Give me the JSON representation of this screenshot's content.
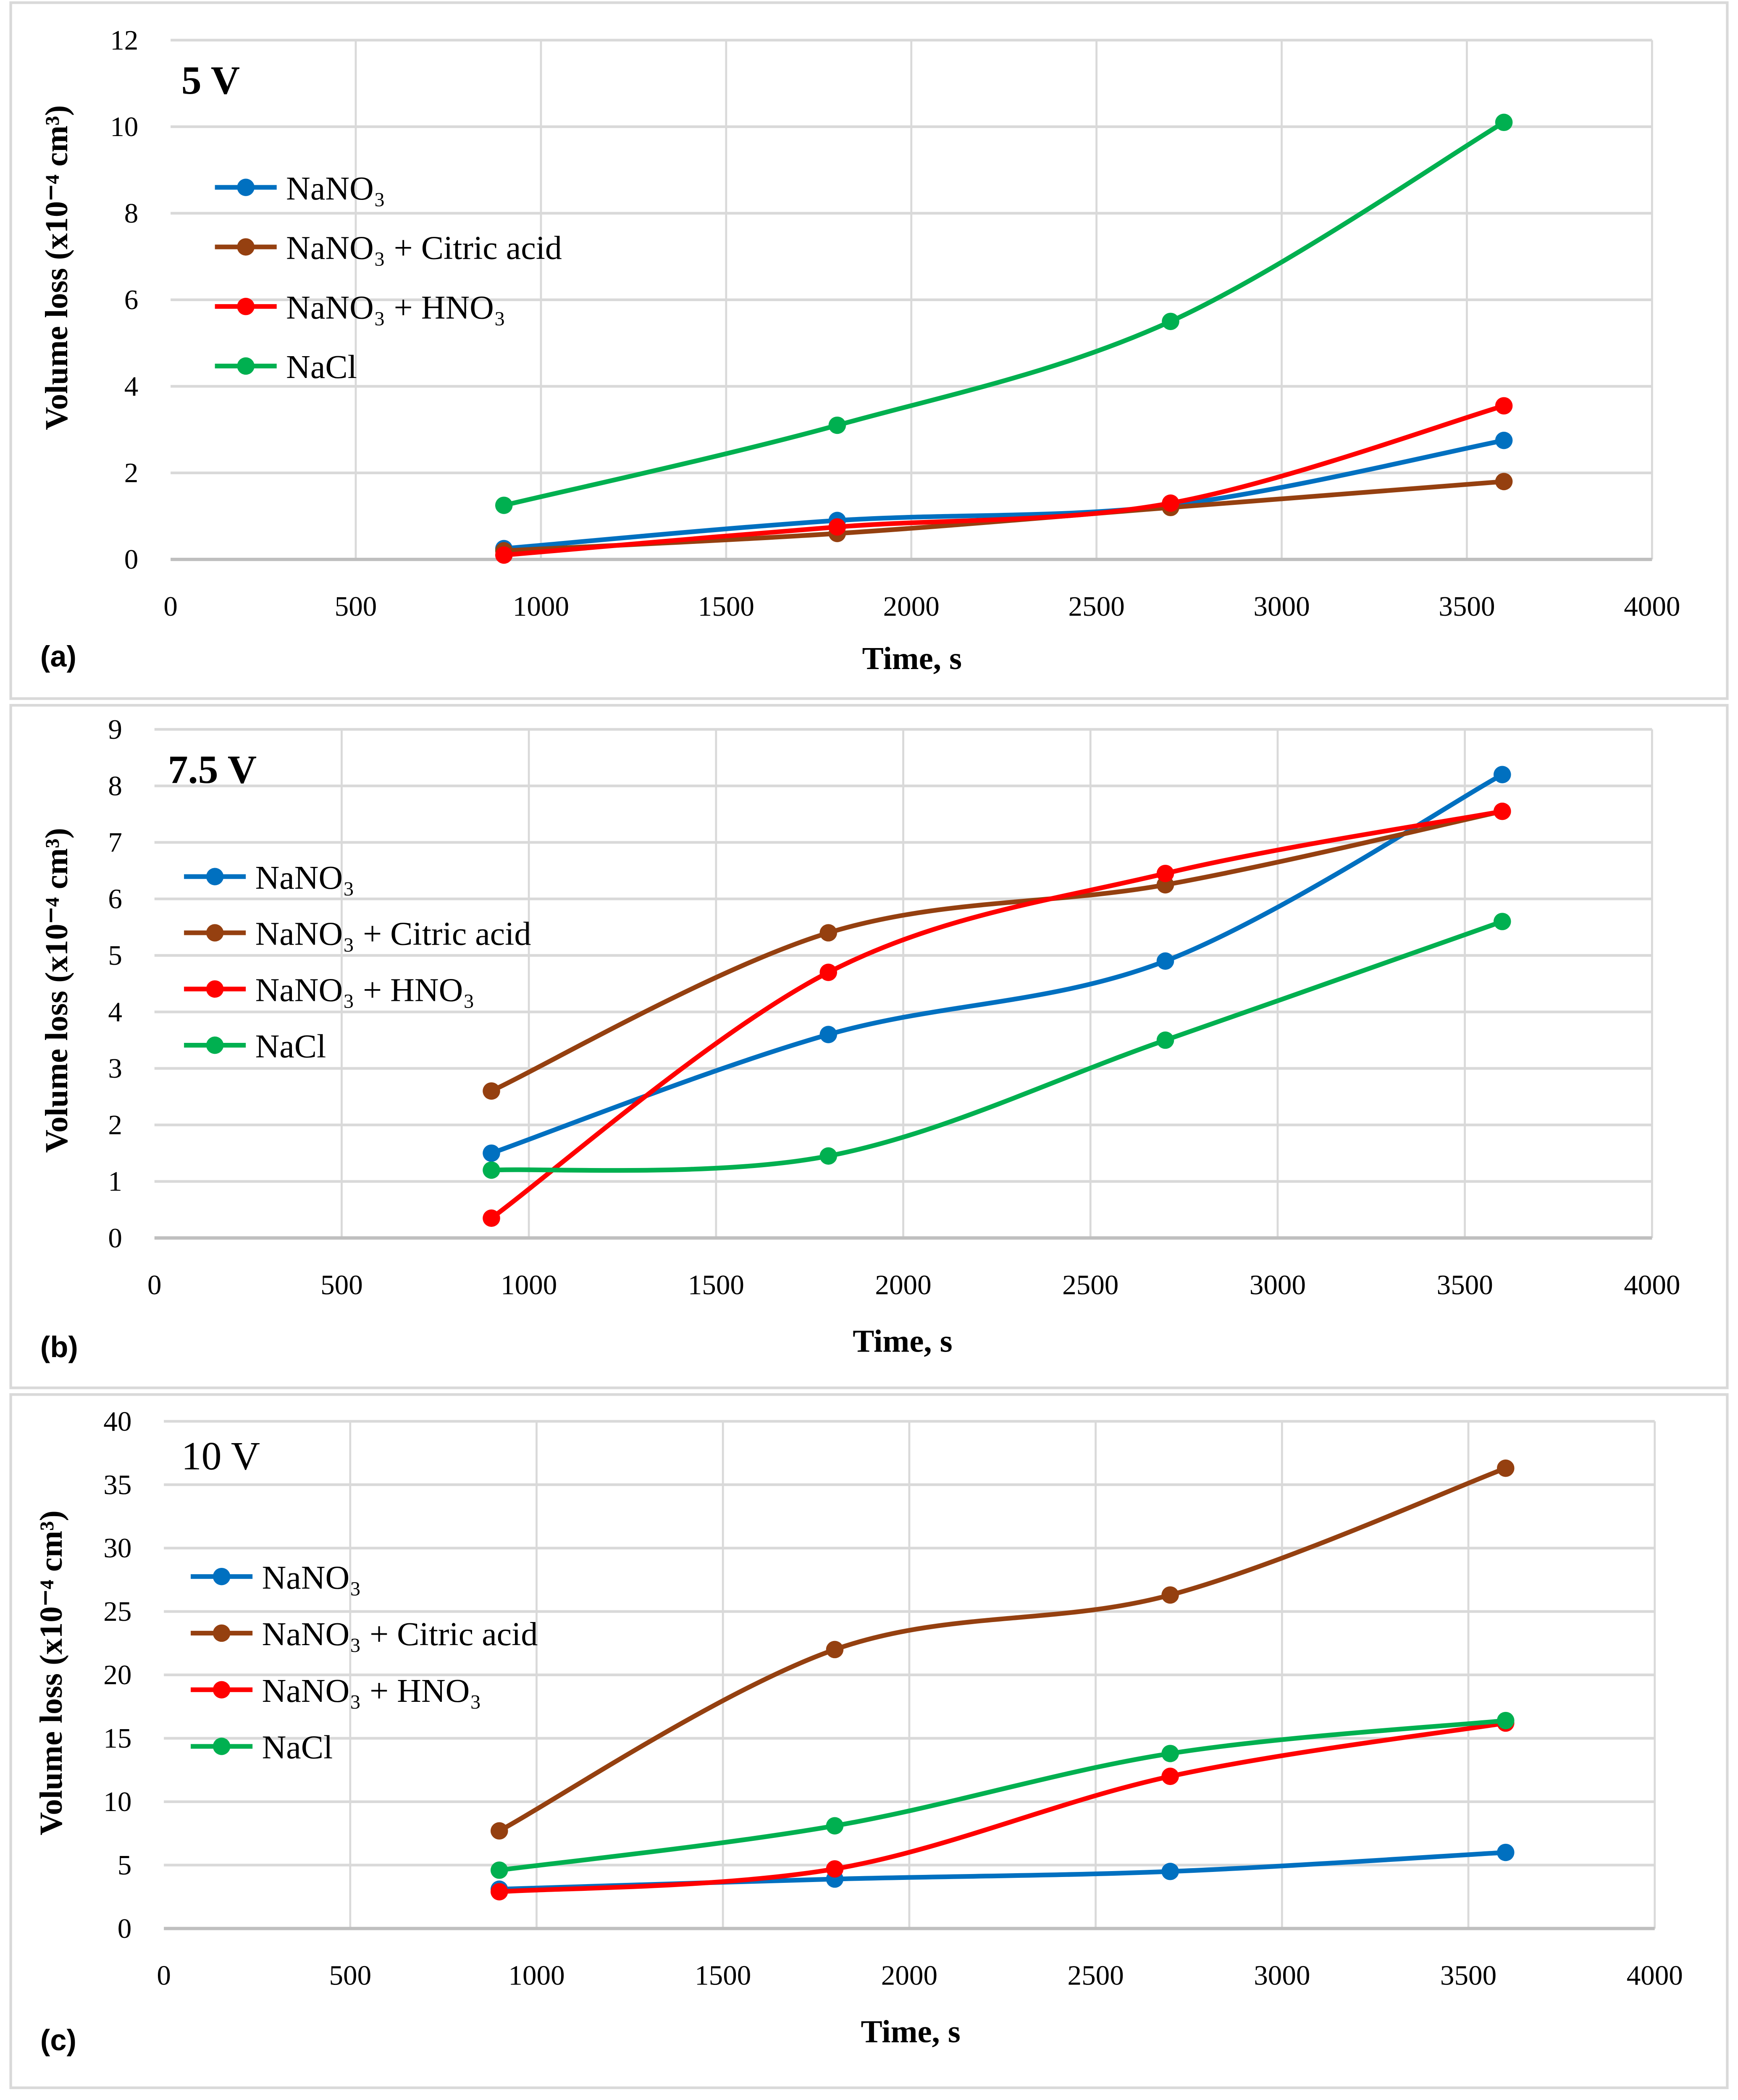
{
  "colors": {
    "NaNO3": "#0070c0",
    "Citric": "#954010",
    "HNO3": "#ff0000",
    "NaCl": "#00b050",
    "grid": "#d9d9d9",
    "frame": "#bfbfbf"
  },
  "chart_data": [
    {
      "type": "line",
      "panel_label": "(a)",
      "title": "5 V",
      "title_bold": true,
      "xlabel": "Time, s",
      "ylabel": "Volume loss (x10⁻⁴ cm³)",
      "xlim": [
        0,
        4000
      ],
      "ylim": [
        0,
        12
      ],
      "xticks": [
        "0",
        "500",
        "1000",
        "1500",
        "2000",
        "2500",
        "3000",
        "3500",
        "4000"
      ],
      "yticks": [
        "0",
        "2",
        "4",
        "6",
        "8",
        "10",
        "12"
      ],
      "x": [
        900,
        1800,
        2700,
        3600
      ],
      "series": [
        {
          "name": "NaNO₃",
          "key": "NaNO3",
          "values": [
            0.25,
            0.9,
            1.25,
            2.75
          ]
        },
        {
          "name": "NaNO₃ + Citric acid",
          "key": "Citric",
          "values": [
            0.2,
            0.6,
            1.2,
            1.8
          ]
        },
        {
          "name": "NaNO₃ + HNO₃",
          "key": "HNO3",
          "values": [
            0.1,
            0.75,
            1.3,
            3.55
          ]
        },
        {
          "name": "NaCl",
          "key": "NaCl",
          "values": [
            1.25,
            3.1,
            5.5,
            10.1
          ]
        }
      ],
      "grid": true,
      "legend": "top-left"
    },
    {
      "type": "line",
      "panel_label": "(b)",
      "title": "7.5 V",
      "title_bold": true,
      "xlabel": "Time, s",
      "ylabel": "Volume loss (x10⁻⁴ cm³)",
      "xlim": [
        0,
        4000
      ],
      "ylim": [
        0,
        9
      ],
      "xticks": [
        "0",
        "500",
        "1000",
        "1500",
        "2000",
        "2500",
        "3000",
        "3500",
        "4000"
      ],
      "yticks": [
        "0",
        "1",
        "2",
        "3",
        "4",
        "5",
        "6",
        "7",
        "8",
        "9"
      ],
      "x": [
        900,
        1800,
        2700,
        3600
      ],
      "series": [
        {
          "name": "NaNO₃",
          "key": "NaNO3",
          "values": [
            1.5,
            3.6,
            4.9,
            8.2
          ]
        },
        {
          "name": "NaNO₃ + Citric acid",
          "key": "Citric",
          "values": [
            2.6,
            5.4,
            6.25,
            7.55
          ]
        },
        {
          "name": "NaNO₃ + HNO₃",
          "key": "HNO3",
          "values": [
            0.35,
            4.7,
            6.45,
            7.55
          ]
        },
        {
          "name": "NaCl",
          "key": "NaCl",
          "values": [
            1.2,
            1.45,
            3.5,
            5.6
          ]
        }
      ],
      "grid": true,
      "legend": "top-left"
    },
    {
      "type": "line",
      "panel_label": "(c)",
      "title": "10 V",
      "title_bold": false,
      "xlabel": "Time, s",
      "ylabel": "Volume loss (x10⁻⁴ cm³)",
      "xlim": [
        0,
        4000
      ],
      "ylim": [
        0,
        40
      ],
      "xticks": [
        "0",
        "500",
        "1000",
        "1500",
        "2000",
        "2500",
        "3000",
        "3500",
        "4000"
      ],
      "yticks": [
        "0",
        "5",
        "10",
        "15",
        "20",
        "25",
        "30",
        "35",
        "40"
      ],
      "x": [
        900,
        1800,
        2700,
        3600
      ],
      "series": [
        {
          "name": "NaNO₃",
          "key": "NaNO3",
          "values": [
            3.1,
            3.9,
            4.5,
            6.0
          ]
        },
        {
          "name": "NaNO₃ + Citric acid",
          "key": "Citric",
          "values": [
            7.7,
            22.0,
            26.3,
            36.3
          ]
        },
        {
          "name": "NaNO₃ + HNO₃",
          "key": "HNO3",
          "values": [
            2.9,
            4.7,
            12.0,
            16.2
          ]
        },
        {
          "name": "NaCl",
          "key": "NaCl",
          "values": [
            4.6,
            8.1,
            13.8,
            16.4
          ]
        }
      ],
      "grid": true,
      "legend": "top-left"
    }
  ]
}
